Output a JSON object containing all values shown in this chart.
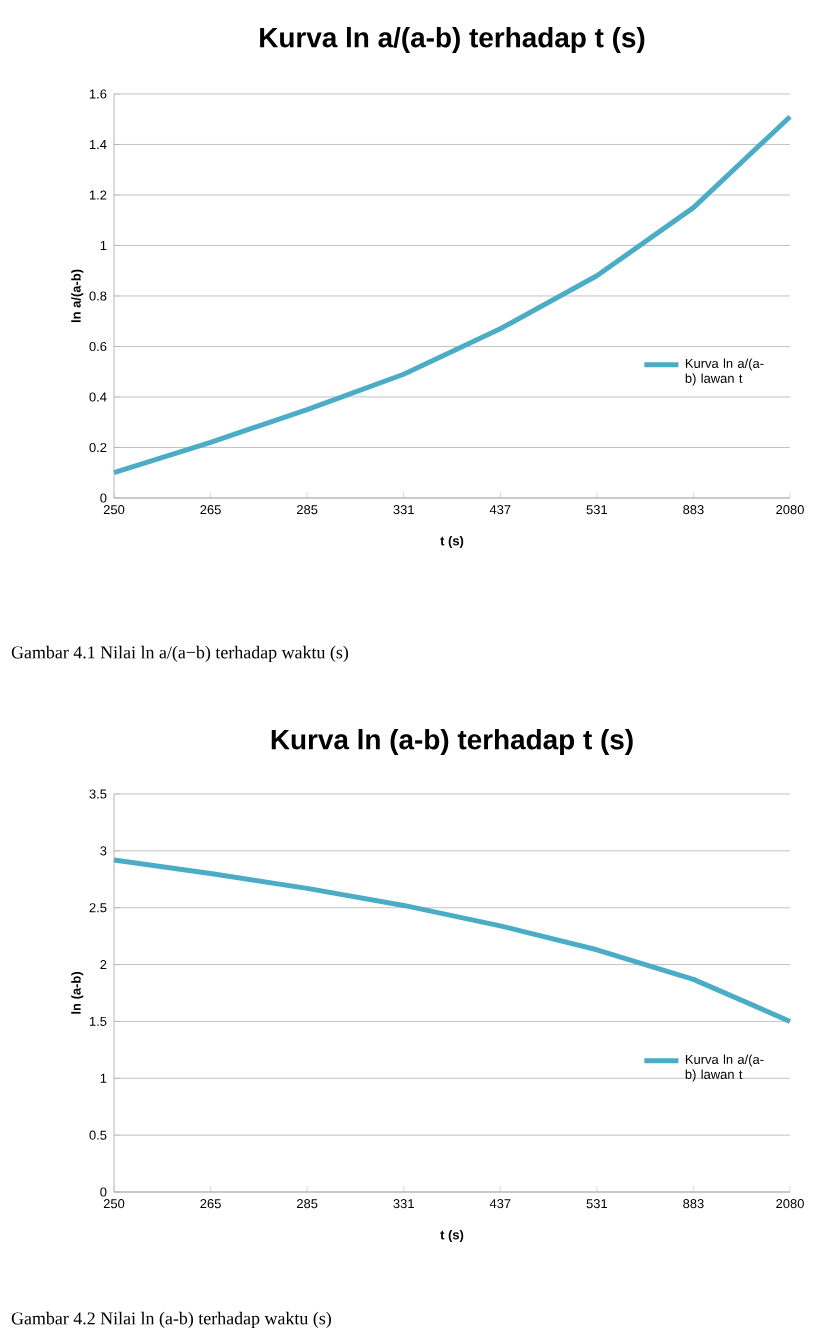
{
  "chart_data": [
    {
      "type": "line",
      "title": "Kurva ln a/(a-b) terhadap t (s)",
      "xlabel": "t (s)",
      "ylabel": "ln a/(a-b)",
      "categories": [
        "250",
        "265",
        "285",
        "331",
        "437",
        "531",
        "883",
        "2080"
      ],
      "series": [
        {
          "name": "Kurva ln a/(a-b) lawan t",
          "color": "#4bacc6",
          "values": [
            0.1,
            0.22,
            0.35,
            0.49,
            0.67,
            0.88,
            1.15,
            1.51
          ]
        }
      ],
      "ylim": [
        0,
        1.6
      ],
      "yticks": [
        0,
        0.2,
        0.4,
        0.6,
        0.8,
        1,
        1.2,
        1.4,
        1.6
      ],
      "grid": "y",
      "legend": "right",
      "marker": "none",
      "line_style": "solid",
      "annotations": [
        "Gambar 4.1 Nilai ln a/(a−b) terhadap waktu (s)"
      ]
    },
    {
      "type": "line",
      "title": "Kurva ln (a-b) terhadap t (s)",
      "xlabel": "t (s)",
      "ylabel": "ln (a-b)",
      "categories": [
        "250",
        "265",
        "285",
        "331",
        "437",
        "531",
        "883",
        "2080"
      ],
      "series": [
        {
          "name": "Kurva ln a/(a-b) lawan t",
          "color": "#4bacc6",
          "values": [
            2.92,
            2.8,
            2.67,
            2.52,
            2.34,
            2.13,
            1.87,
            1.5
          ]
        }
      ],
      "ylim": [
        0,
        3.5
      ],
      "yticks": [
        0,
        0.5,
        1,
        1.5,
        2,
        2.5,
        3,
        3.5
      ],
      "grid": "y",
      "legend": "right",
      "marker": "none",
      "line_style": "solid",
      "annotations": [
        "Gambar 4.2 Nilai ln (a-b) terhadap waktu (s)"
      ]
    }
  ]
}
